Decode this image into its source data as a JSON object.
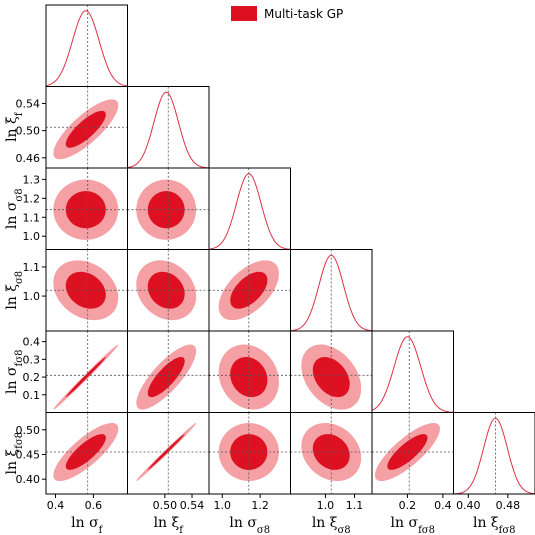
{
  "chart_data": {
    "type": "corner",
    "legend": {
      "label": "Multi-task GP",
      "color": "#dd1122",
      "placement": "top-center"
    },
    "colors": {
      "inner": "#dd1122",
      "outer": "#f4a0a4",
      "line": "#dd3344",
      "ref": "#555555"
    },
    "parameters": [
      {
        "label_main": "ln σ",
        "label_sub": "f",
        "range": [
          0.35,
          0.78
        ],
        "ticks": [
          0.4,
          0.6
        ],
        "tick_labels": [
          "0.4",
          "0.6"
        ],
        "mean": 0.56,
        "sd": 0.07,
        "ref": 0.57
      },
      {
        "label_main": "ln ξ",
        "label_sub": "f",
        "range": [
          0.445,
          0.565
        ],
        "ticks": [
          0.5,
          0.54
        ],
        "tick_labels": [
          "0.50",
          "0.54"
        ],
        "ylim_ticks": [
          0.46,
          0.5,
          0.54
        ],
        "ylim_tick_labels": [
          "0.46",
          "0.50",
          "0.54"
        ],
        "mean": 0.502,
        "sd": 0.018,
        "ref": 0.505
      },
      {
        "label_main": "ln σ",
        "label_sub": "σ8",
        "range": [
          0.93,
          1.36
        ],
        "ticks": [
          1.0,
          1.2
        ],
        "tick_labels": [
          "1.0",
          "1.2"
        ],
        "ylim_ticks": [
          1.0,
          1.1,
          1.2,
          1.3
        ],
        "ylim_tick_labels": [
          "1.0",
          "1.1",
          "1.2",
          "1.3"
        ],
        "mean": 1.14,
        "sd": 0.065,
        "ref": 1.14
      },
      {
        "label_main": "ln ξ",
        "label_sub": "σ8",
        "range": [
          0.88,
          1.16
        ],
        "ticks": [
          1.0,
          1.1
        ],
        "tick_labels": [
          "1.0",
          "1.1"
        ],
        "ylim_ticks": [
          1.0,
          1.1
        ],
        "ylim_tick_labels": [
          "1.0",
          "1.1"
        ],
        "mean": 1.02,
        "sd": 0.042,
        "ref": 1.02
      },
      {
        "label_main": "ln σ",
        "label_sub": "fσ8",
        "range": [
          0.0,
          0.46
        ],
        "ticks": [
          0.2,
          0.4
        ],
        "tick_labels": [
          "0.2",
          "0.4"
        ],
        "ylim_ticks": [
          0.1,
          0.2,
          0.3,
          0.4
        ],
        "ylim_tick_labels": [
          "0.1",
          "0.2",
          "0.3",
          "0.4"
        ],
        "mean": 0.2,
        "sd": 0.075,
        "ref": 0.21
      },
      {
        "label_main": "ln ξ",
        "label_sub": "fσ8",
        "range": [
          0.37,
          0.535
        ],
        "ticks": [
          0.4,
          0.48
        ],
        "tick_labels": [
          "0.40",
          "0.48"
        ],
        "ylim_ticks": [
          0.4,
          0.45,
          0.5
        ],
        "ylim_tick_labels": [
          "0.40",
          "0.45",
          "0.50"
        ],
        "mean": 0.455,
        "sd": 0.024,
        "ref": 0.455
      }
    ],
    "correlations": [
      [
        1.0,
        0.8,
        0.0,
        -0.25,
        0.995,
        0.8
      ],
      [
        0.8,
        1.0,
        0.0,
        -0.2,
        0.8,
        0.995
      ],
      [
        0.0,
        0.0,
        1.0,
        0.55,
        -0.15,
        0.0
      ],
      [
        -0.25,
        -0.2,
        0.55,
        1.0,
        -0.35,
        -0.2
      ],
      [
        0.995,
        0.8,
        -0.15,
        -0.35,
        1.0,
        0.8
      ],
      [
        0.8,
        0.995,
        0.0,
        -0.2,
        0.8,
        1.0
      ]
    ],
    "contour_levels": [
      "68%",
      "95%"
    ],
    "grid": false
  }
}
